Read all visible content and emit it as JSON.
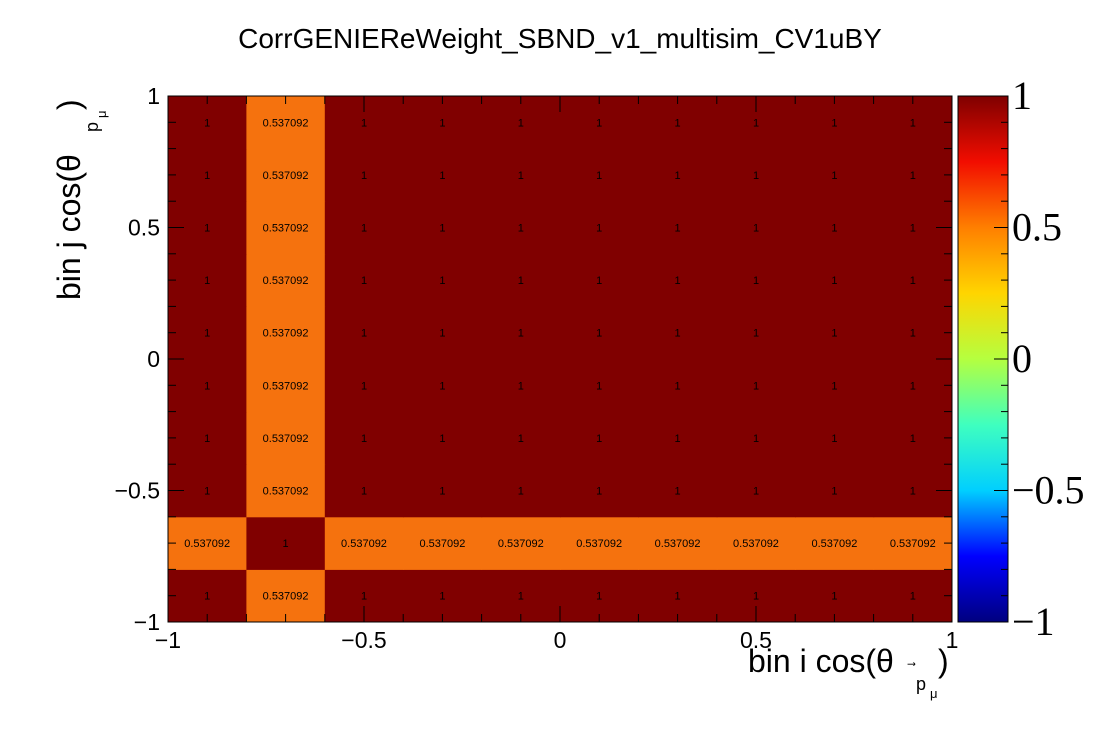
{
  "chart_data": {
    "type": "heatmap",
    "title": "CorrGENIEReWeight_SBND_v1_multisim_CV1uBY",
    "xlabel": {
      "main": "bin i cos(θ",
      "sub": "p",
      "subsub": "μ",
      "close": ")"
    },
    "ylabel": {
      "main": "bin j cos(θ",
      "sub": "p",
      "subsub": "μ",
      "close": ")"
    },
    "xlim": [
      -1,
      1
    ],
    "ylim": [
      -1,
      1
    ],
    "zlim": [
      -1,
      1
    ],
    "nbins": 10,
    "x_ticks": [
      {
        "value": -1,
        "label": "−1"
      },
      {
        "value": -0.5,
        "label": "−0.5"
      },
      {
        "value": 0,
        "label": "0"
      },
      {
        "value": 0.5,
        "label": "0.5"
      },
      {
        "value": 1,
        "label": "1"
      }
    ],
    "y_ticks": [
      {
        "value": -1,
        "label": "−1"
      },
      {
        "value": -0.5,
        "label": "−0.5"
      },
      {
        "value": 0,
        "label": "0"
      },
      {
        "value": 0.5,
        "label": "0.5"
      },
      {
        "value": 1,
        "label": "1"
      }
    ],
    "z_ticks": [
      {
        "value": 1,
        "label": "1"
      },
      {
        "value": 0.5,
        "label": "0.5"
      },
      {
        "value": 0,
        "label": "0"
      },
      {
        "value": -0.5,
        "label": "−0.5"
      },
      {
        "value": -1,
        "label": "−1"
      }
    ],
    "matrix_rows_bottom_to_top": [
      [
        1,
        0.537092,
        1,
        1,
        1,
        1,
        1,
        1,
        1,
        1
      ],
      [
        0.537092,
        1,
        0.537092,
        0.537092,
        0.537092,
        0.537092,
        0.537092,
        0.537092,
        0.537092,
        0.537092
      ],
      [
        1,
        0.537092,
        1,
        1,
        1,
        1,
        1,
        1,
        1,
        1
      ],
      [
        1,
        0.537092,
        1,
        1,
        1,
        1,
        1,
        1,
        1,
        1
      ],
      [
        1,
        0.537092,
        1,
        1,
        1,
        1,
        1,
        1,
        1,
        1
      ],
      [
        1,
        0.537092,
        1,
        1,
        1,
        1,
        1,
        1,
        1,
        1
      ],
      [
        1,
        0.537092,
        1,
        1,
        1,
        1,
        1,
        1,
        1,
        1
      ],
      [
        1,
        0.537092,
        1,
        1,
        1,
        1,
        1,
        1,
        1,
        1
      ],
      [
        1,
        0.537092,
        1,
        1,
        1,
        1,
        1,
        1,
        1,
        1
      ],
      [
        1,
        0.537092,
        1,
        1,
        1,
        1,
        1,
        1,
        1,
        1
      ]
    ],
    "colormap_stops": [
      "#00007f",
      "#0000ff",
      "#00cfff",
      "#3fffbf",
      "#b5ff3f",
      "#ffd500",
      "#ff7f00",
      "#f20d00",
      "#7f0000"
    ],
    "colors": {
      "cell_high": "#800000",
      "cell_mid": "#f5720e"
    }
  }
}
